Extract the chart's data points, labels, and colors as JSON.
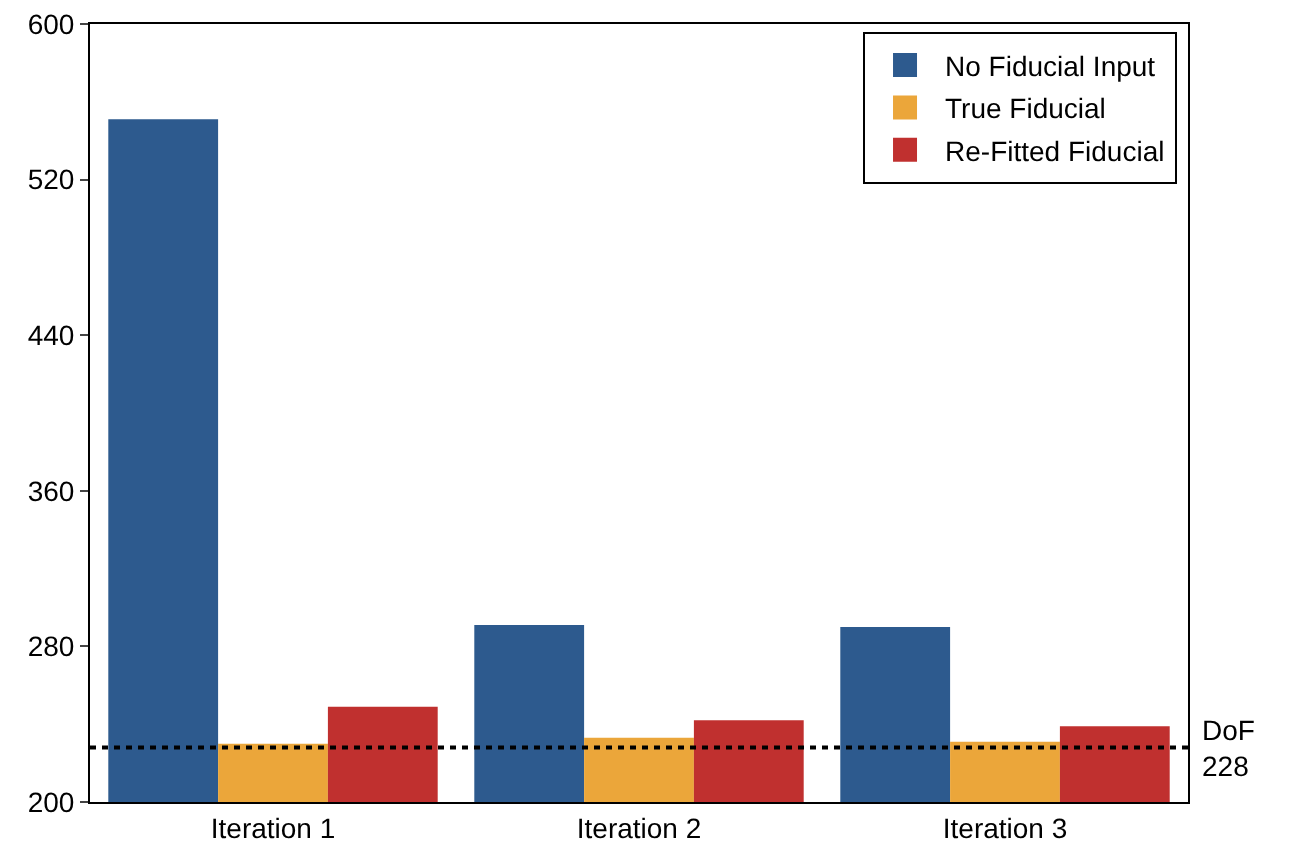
{
  "chart_data": {
    "type": "bar",
    "categories": [
      "Iteration 1",
      "Iteration 2",
      "Iteration 3"
    ],
    "series": [
      {
        "name": "No Fiducial Input",
        "color": "#2d5a8e",
        "values": [
          551,
          291,
          290
        ]
      },
      {
        "name": "True Fiducial",
        "color": "#eba63a",
        "values": [
          230,
          233,
          231
        ]
      },
      {
        "name": "Re-Fitted Fiducial",
        "color": "#c0302f",
        "values": [
          249,
          242,
          239
        ]
      }
    ],
    "ylim": [
      200,
      600
    ],
    "yticks": [
      200,
      280,
      360,
      440,
      520,
      600
    ],
    "grid": false,
    "legend": "top right",
    "ref_lines": [
      {
        "axis": "y",
        "value": 228,
        "label": "DoF\n228",
        "color": "#000000",
        "line_style": "dotted"
      }
    ]
  }
}
